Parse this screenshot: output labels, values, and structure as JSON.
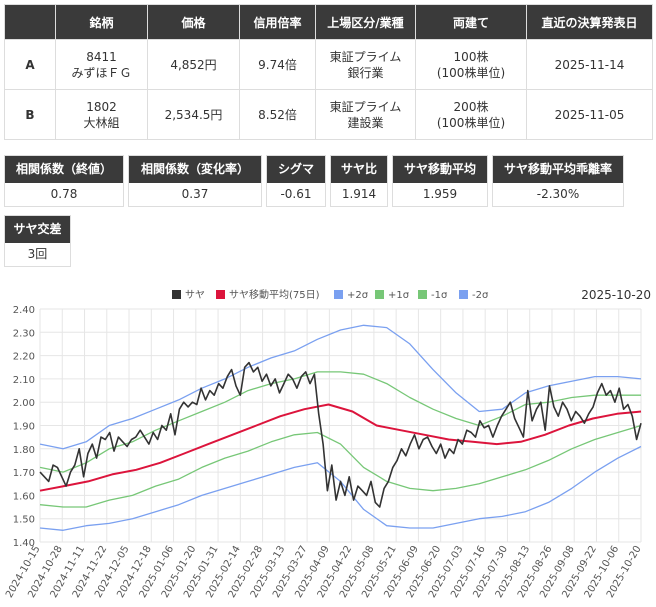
{
  "table": {
    "headers": [
      "",
      "銘柄",
      "価格",
      "信用倍率",
      "上場区分/業種",
      "両建て",
      "直近の決算発表日"
    ],
    "rows": [
      {
        "label": "A",
        "code": "8411",
        "name": "みずほＦＧ",
        "price": "4,852円",
        "margin": "9.74倍",
        "market": "東証プライム",
        "industry": "銀行業",
        "shares": "100株",
        "unit": "(100株単位)",
        "date": "2025-11-14"
      },
      {
        "label": "B",
        "code": "1802",
        "name": "大林組",
        "price": "2,534.5円",
        "margin": "8.52倍",
        "market": "東証プライム",
        "industry": "建設業",
        "shares": "200株",
        "unit": "(100株単位)",
        "date": "2025-11-05"
      }
    ]
  },
  "stats": {
    "corr_end": {
      "label": "相関係数（終値）",
      "value": "0.78"
    },
    "corr_change": {
      "label": "相関係数（変化率）",
      "value": "0.37"
    },
    "sigma": {
      "label": "シグマ",
      "value": "-0.61"
    },
    "spread_ratio": {
      "label": "サヤ比",
      "value": "1.914"
    },
    "spread_ma": {
      "label": "サヤ移動平均",
      "value": "1.959"
    },
    "spread_ma_dev": {
      "label": "サヤ移動平均乖離率",
      "value": "-2.30%"
    },
    "crossings": {
      "label": "サヤ交差",
      "value": "3回"
    }
  },
  "chart_data": {
    "type": "line",
    "date_label": "2025-10-20",
    "legend": [
      "サヤ",
      "サヤ移動平均(75日)",
      "+2σ",
      "+1σ",
      "-1σ",
      "-2σ"
    ],
    "colors": {
      "spread": "#333333",
      "ma": "#dc143c",
      "band2": "#7aa0f0",
      "band1": "#77c777"
    },
    "ylim": [
      1.4,
      2.4
    ],
    "yticks": [
      "2.40",
      "2.30",
      "2.20",
      "2.10",
      "2.00",
      "1.90",
      "1.80",
      "1.70",
      "1.60",
      "1.50",
      "1.40"
    ],
    "xticks": [
      "2024-10-15",
      "2024-10-28",
      "2024-11-11",
      "2024-11-22",
      "2024-12-05",
      "2024-12-18",
      "2025-01-06",
      "2025-01-20",
      "2025-01-31",
      "2025-02-14",
      "2025-02-28",
      "2025-03-13",
      "2025-03-27",
      "2025-04-09",
      "2025-04-22",
      "2025-05-08",
      "2025-05-21",
      "2025-06-09",
      "2025-06-20",
      "2025-07-03",
      "2025-07-16",
      "2025-07-30",
      "2025-08-13",
      "2025-08-26",
      "2025-09-08",
      "2025-09-22",
      "2025-10-06",
      "2025-10-20"
    ],
    "series": [
      {
        "name": "サヤ",
        "values": [
          1.7,
          1.68,
          1.66,
          1.73,
          1.72,
          1.68,
          1.64,
          1.7,
          1.73,
          1.8,
          1.68,
          1.78,
          1.82,
          1.76,
          1.85,
          1.84,
          1.87,
          1.79,
          1.85,
          1.83,
          1.81,
          1.84,
          1.85,
          1.88,
          1.85,
          1.82,
          1.87,
          1.84,
          1.9,
          1.88,
          1.95,
          1.86,
          1.97,
          2.0,
          1.98,
          2.0,
          1.99,
          2.06,
          2.01,
          2.05,
          2.03,
          2.08,
          2.06,
          2.11,
          2.14,
          2.07,
          2.03,
          2.15,
          2.17,
          2.13,
          2.15,
          2.09,
          2.12,
          2.07,
          2.1,
          2.04,
          2.08,
          2.12,
          2.1,
          2.06,
          2.11,
          2.13,
          2.08,
          2.12,
          1.95,
          1.82,
          1.62,
          1.73,
          1.58,
          1.66,
          1.6,
          1.68,
          1.58,
          1.64,
          1.62,
          1.6,
          1.66,
          1.57,
          1.55,
          1.63,
          1.66,
          1.72,
          1.75,
          1.8,
          1.77,
          1.82,
          1.86,
          1.8,
          1.84,
          1.85,
          1.81,
          1.78,
          1.82,
          1.76,
          1.8,
          1.78,
          1.84,
          1.82,
          1.88,
          1.87,
          1.85,
          1.92,
          1.89,
          1.9,
          1.85,
          1.9,
          1.94,
          1.97,
          2.0,
          1.93,
          1.89,
          1.85,
          2.05,
          1.92,
          1.97,
          2.0,
          1.88,
          2.07,
          1.98,
          1.94,
          2.0,
          1.97,
          1.92,
          1.96,
          1.94,
          1.91,
          1.95,
          1.98,
          2.04,
          2.08,
          2.03,
          2.05,
          2.0,
          2.06,
          1.97,
          1.99,
          1.94,
          1.84,
          1.91
        ]
      },
      {
        "name": "サヤ移動平均(75日)",
        "values": [
          1.62,
          1.64,
          1.66,
          1.69,
          1.71,
          1.74,
          1.78,
          1.82,
          1.86,
          1.9,
          1.94,
          1.97,
          1.99,
          1.96,
          1.9,
          1.88,
          1.86,
          1.84,
          1.83,
          1.82,
          1.83,
          1.86,
          1.9,
          1.93,
          1.95,
          1.96
        ]
      },
      {
        "name": "+2σ",
        "values": [
          1.82,
          1.8,
          1.83,
          1.9,
          1.93,
          1.97,
          2.01,
          2.06,
          2.1,
          2.15,
          2.19,
          2.22,
          2.27,
          2.31,
          2.33,
          2.32,
          2.25,
          2.14,
          2.04,
          1.96,
          1.97,
          2.04,
          2.07,
          2.09,
          2.11,
          2.11,
          2.1
        ]
      },
      {
        "name": "+1σ",
        "values": [
          1.72,
          1.7,
          1.74,
          1.8,
          1.83,
          1.88,
          1.92,
          1.96,
          2.0,
          2.05,
          2.08,
          2.1,
          2.13,
          2.13,
          2.12,
          2.08,
          2.02,
          1.97,
          1.93,
          1.9,
          1.94,
          1.99,
          2.0,
          2.02,
          2.03,
          2.03,
          2.03
        ]
      },
      {
        "name": "-1σ",
        "values": [
          1.56,
          1.55,
          1.55,
          1.58,
          1.6,
          1.64,
          1.67,
          1.72,
          1.76,
          1.79,
          1.83,
          1.86,
          1.87,
          1.82,
          1.72,
          1.66,
          1.63,
          1.62,
          1.63,
          1.65,
          1.68,
          1.71,
          1.75,
          1.8,
          1.84,
          1.87,
          1.9
        ]
      },
      {
        "name": "-2σ",
        "values": [
          1.46,
          1.45,
          1.47,
          1.48,
          1.5,
          1.53,
          1.56,
          1.6,
          1.63,
          1.66,
          1.69,
          1.72,
          1.74,
          1.66,
          1.54,
          1.47,
          1.46,
          1.46,
          1.48,
          1.5,
          1.51,
          1.53,
          1.57,
          1.63,
          1.7,
          1.76,
          1.81
        ]
      }
    ]
  }
}
